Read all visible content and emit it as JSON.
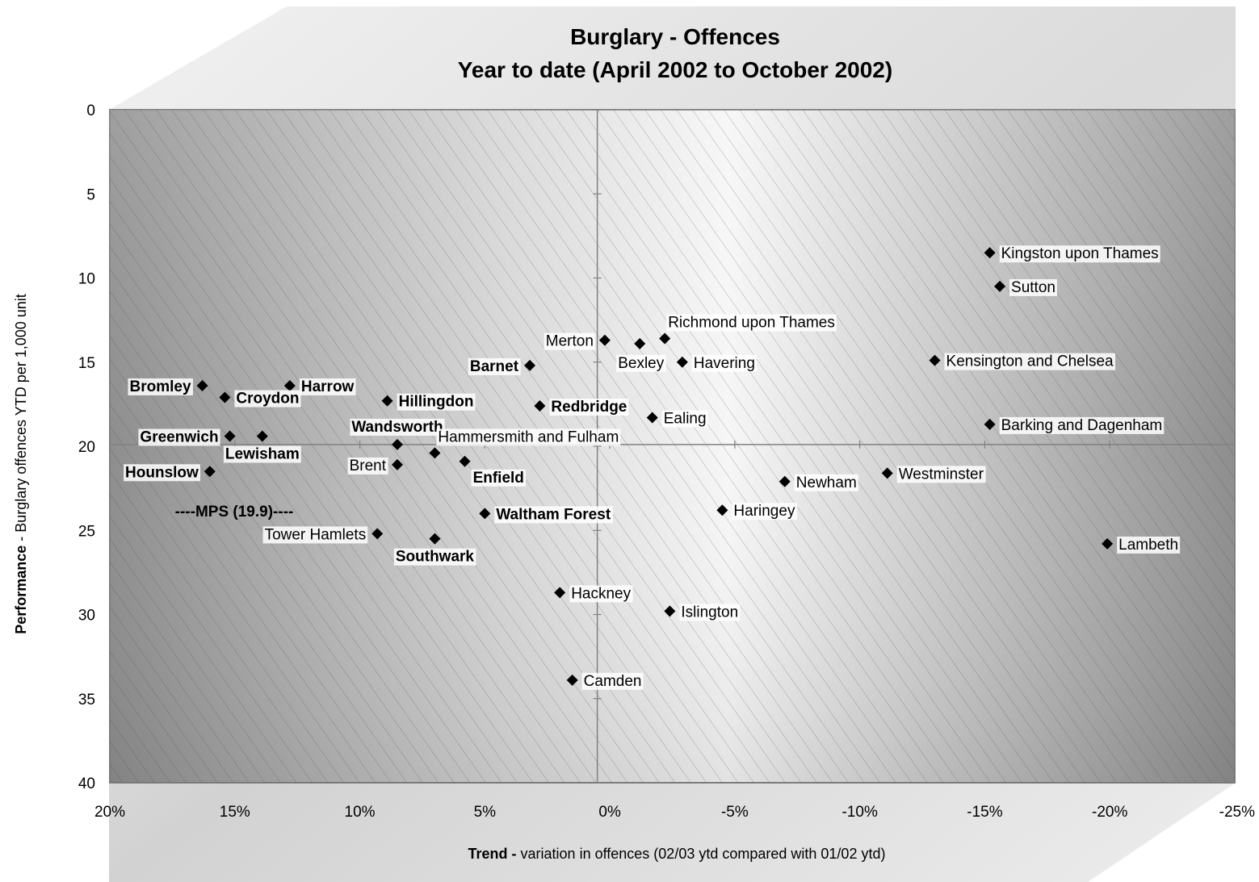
{
  "chart_data": {
    "type": "scatter",
    "title": [
      "Burglary - Offences",
      "Year to date (April 2002 to October 2002)"
    ],
    "xlabel": {
      "bold": "Trend -",
      "rest": " variation in offences (02/03 ytd compared with 01/02 ytd)"
    },
    "ylabel": {
      "bold": "Performance",
      "rest": " - Burglary offences YTD per 1,000 unit"
    },
    "x_reversed": true,
    "xlim": [
      20,
      -25
    ],
    "ylim": [
      0,
      40
    ],
    "y_inverted": true,
    "x_ticks": [
      20,
      15,
      10,
      5,
      0,
      -5,
      -10,
      -15,
      -20,
      -25
    ],
    "x_tick_labels": [
      "20%",
      "15%",
      "10%",
      "5%",
      "0%",
      "-5%",
      "-10%",
      "-15%",
      "-20%",
      "-25%"
    ],
    "y_ticks": [
      0,
      5,
      10,
      15,
      20,
      25,
      30,
      35,
      40
    ],
    "y_tick_labels": [
      "0",
      "5",
      "10",
      "15",
      "20",
      "25",
      "30",
      "35",
      "40"
    ],
    "crosshair": {
      "x": 0.5,
      "y": 19.9
    },
    "mps_label": "----MPS (19.9)----",
    "points": [
      {
        "name": "Kingston upon Thames",
        "x": -15.2,
        "y": 8.5,
        "bold": false,
        "pos": "right"
      },
      {
        "name": "Sutton",
        "x": -15.6,
        "y": 10.5,
        "bold": false,
        "pos": "right"
      },
      {
        "name": "Richmond upon Thames",
        "x": -2.2,
        "y": 13.6,
        "bold": false,
        "pos": "above-right"
      },
      {
        "name": "Merton",
        "x": 0.2,
        "y": 13.7,
        "bold": false,
        "pos": "left"
      },
      {
        "name": "Bexley",
        "x": -1.2,
        "y": 13.9,
        "bold": false,
        "pos": "below-left"
      },
      {
        "name": "Havering",
        "x": -2.9,
        "y": 15.0,
        "bold": false,
        "pos": "right"
      },
      {
        "name": "Kensington and Chelsea",
        "x": -13.0,
        "y": 14.9,
        "bold": false,
        "pos": "right"
      },
      {
        "name": "Barnet",
        "x": 3.2,
        "y": 15.2,
        "bold": true,
        "pos": "left"
      },
      {
        "name": "Bromley",
        "x": 16.3,
        "y": 16.4,
        "bold": true,
        "pos": "left"
      },
      {
        "name": "Harrow",
        "x": 12.8,
        "y": 16.4,
        "bold": true,
        "pos": "right"
      },
      {
        "name": "Croydon",
        "x": 15.4,
        "y": 17.1,
        "bold": true,
        "pos": "right"
      },
      {
        "name": "Hillingdon",
        "x": 8.9,
        "y": 17.3,
        "bold": true,
        "pos": "right"
      },
      {
        "name": "Redbridge",
        "x": 2.8,
        "y": 17.6,
        "bold": true,
        "pos": "right"
      },
      {
        "name": "Ealing",
        "x": -1.7,
        "y": 18.3,
        "bold": false,
        "pos": "right"
      },
      {
        "name": "Barking and Dagenham",
        "x": -15.2,
        "y": 18.7,
        "bold": false,
        "pos": "right"
      },
      {
        "name": "Greenwich",
        "x": 15.2,
        "y": 19.4,
        "bold": true,
        "pos": "left"
      },
      {
        "name": "Lewisham",
        "x": 13.9,
        "y": 19.4,
        "bold": true,
        "pos": "below"
      },
      {
        "name": "Wandsworth",
        "x": 8.5,
        "y": 19.9,
        "bold": true,
        "pos": "above"
      },
      {
        "name": "Hammersmith and Fulham",
        "x": 7.0,
        "y": 20.4,
        "bold": false,
        "pos": "above-right"
      },
      {
        "name": "Brent",
        "x": 8.5,
        "y": 21.1,
        "bold": false,
        "pos": "left"
      },
      {
        "name": "Enfield",
        "x": 5.8,
        "y": 20.9,
        "bold": true,
        "pos": "below-right"
      },
      {
        "name": "Hounslow",
        "x": 16.0,
        "y": 21.5,
        "bold": true,
        "pos": "left"
      },
      {
        "name": "Newham",
        "x": -7.0,
        "y": 22.1,
        "bold": false,
        "pos": "right"
      },
      {
        "name": "Westminster",
        "x": -11.1,
        "y": 21.6,
        "bold": false,
        "pos": "right"
      },
      {
        "name": "Waltham Forest",
        "x": 5.0,
        "y": 24.0,
        "bold": true,
        "pos": "right"
      },
      {
        "name": "Haringey",
        "x": -4.5,
        "y": 23.8,
        "bold": false,
        "pos": "right"
      },
      {
        "name": "Tower Hamlets",
        "x": 9.3,
        "y": 25.2,
        "bold": false,
        "pos": "left"
      },
      {
        "name": "Southwark",
        "x": 7.0,
        "y": 25.5,
        "bold": true,
        "pos": "below"
      },
      {
        "name": "Lambeth",
        "x": -19.9,
        "y": 25.8,
        "bold": false,
        "pos": "right"
      },
      {
        "name": "Hackney",
        "x": 2.0,
        "y": 28.7,
        "bold": false,
        "pos": "right"
      },
      {
        "name": "Islington",
        "x": -2.4,
        "y": 29.8,
        "bold": false,
        "pos": "right"
      },
      {
        "name": "Camden",
        "x": 1.5,
        "y": 33.9,
        "bold": false,
        "pos": "right"
      }
    ]
  }
}
